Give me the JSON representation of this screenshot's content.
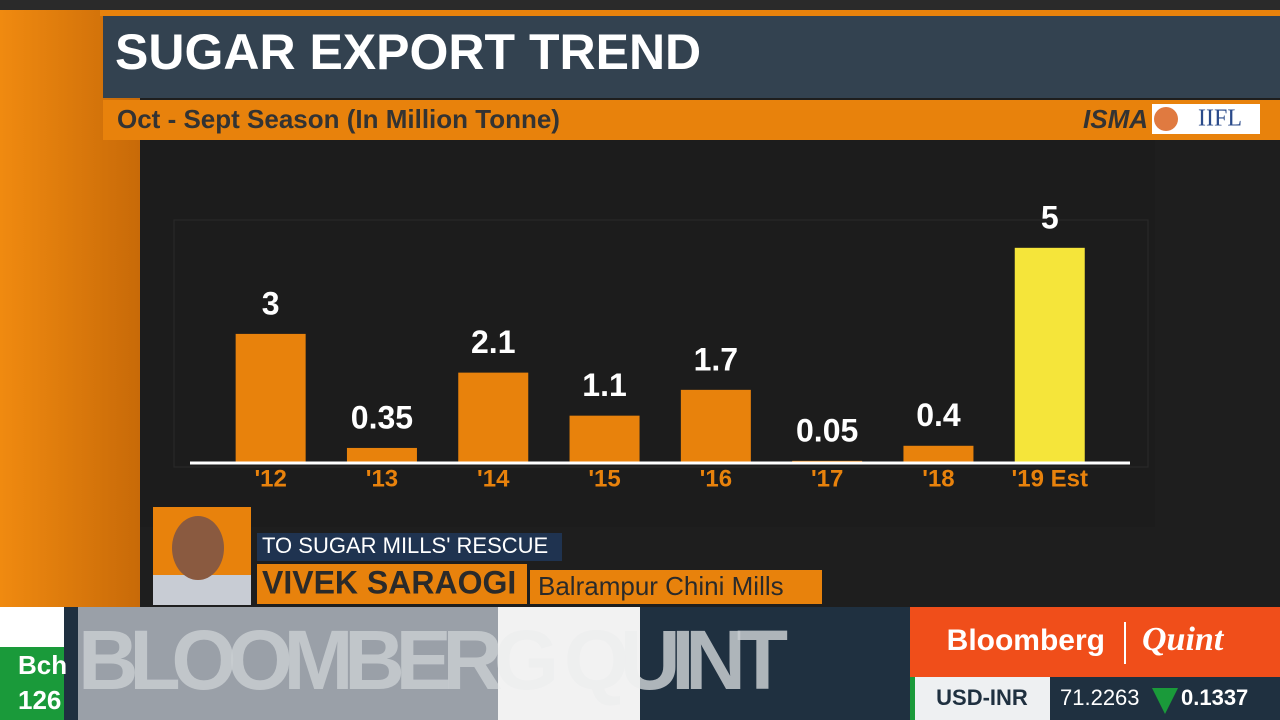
{
  "chart_data": {
    "type": "bar",
    "title": "SUGAR EXPORT TREND",
    "subtitle": "Oct - Sept Season (In Million Tonne)",
    "categories": [
      "'12",
      "'13",
      "'14",
      "'15",
      "'16",
      "'17",
      "'18",
      "'19 Est"
    ],
    "values": [
      3,
      0.35,
      2.1,
      1.1,
      1.7,
      0.05,
      0.4,
      5
    ],
    "colors": [
      "#e8820c",
      "#e8820c",
      "#e8820c",
      "#e8820c",
      "#e8820c",
      "#e8820c",
      "#e8820c",
      "#f5e53a"
    ],
    "ylim": [
      0,
      5.6
    ],
    "source": "ISMA",
    "logo": "IIFL"
  },
  "lower_third": {
    "tag": "TO SUGAR MILLS' RESCUE",
    "name": "VIVEK SARAOGI",
    "company": "Balrampur Chini Mills"
  },
  "ticker": {
    "left_top": "Bch",
    "left_bottom": "126",
    "banner": "BLOOMBERG QUINT",
    "brand": "Bloomberg",
    "brand2": "Quint",
    "pair": "USD-INR",
    "rate": "71.2263",
    "change": "0.1337"
  }
}
